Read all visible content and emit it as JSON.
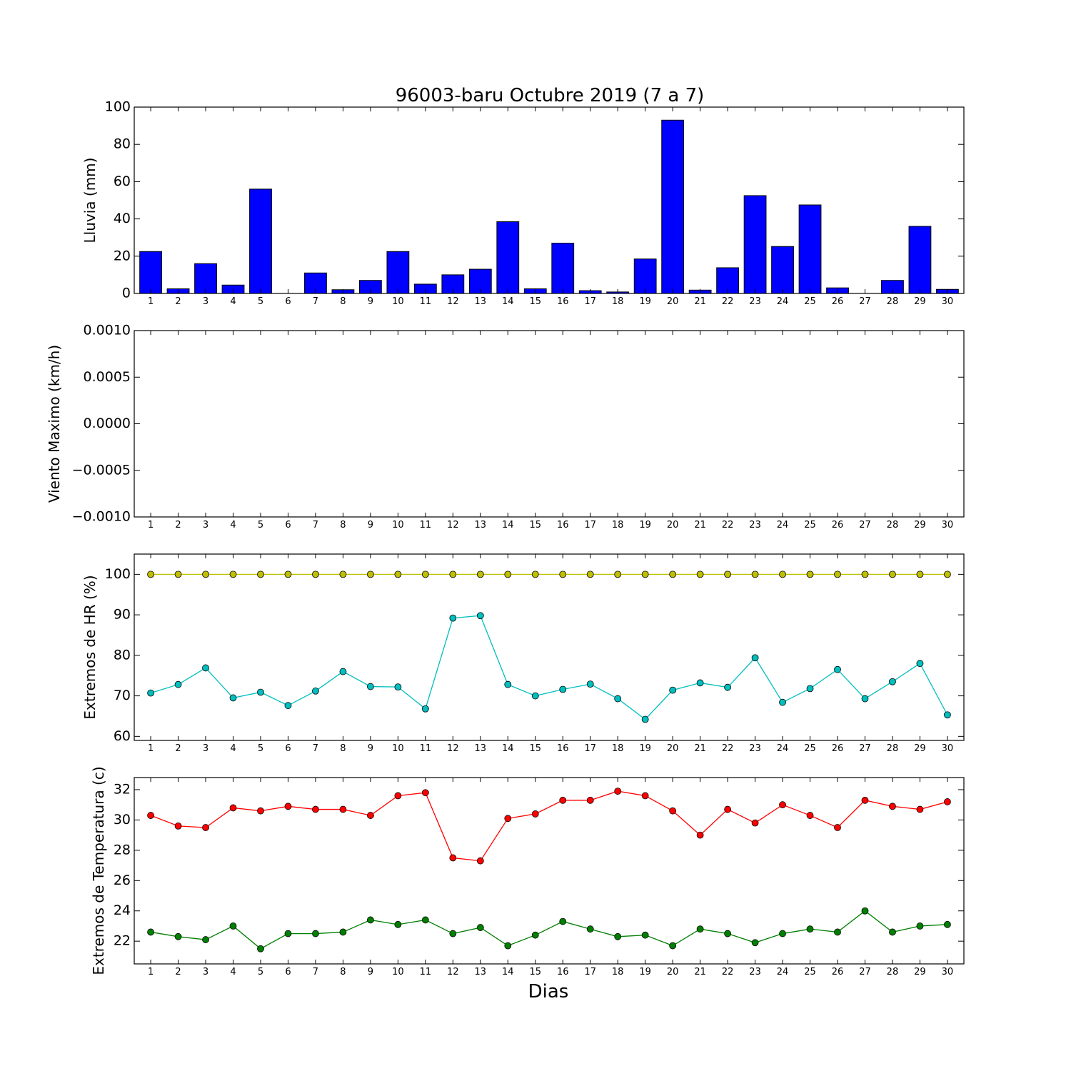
{
  "title": "96003-baru Octubre 2019  (7 a 7)",
  "xlabel": "Dias",
  "chart_data": [
    {
      "type": "bar",
      "ylabel": "Lluvia (mm)",
      "ylim": [
        0,
        100
      ],
      "yticks": [
        "0",
        "20",
        "40",
        "60",
        "80",
        "100"
      ],
      "categories": [
        "1",
        "2",
        "3",
        "4",
        "5",
        "6",
        "7",
        "8",
        "9",
        "10",
        "11",
        "12",
        "13",
        "14",
        "15",
        "16",
        "17",
        "18",
        "19",
        "20",
        "21",
        "22",
        "23",
        "24",
        "25",
        "26",
        "27",
        "28",
        "29",
        "30"
      ],
      "values": [
        22.5,
        2.5,
        16,
        4.5,
        56,
        0,
        11,
        2,
        7,
        22.5,
        5,
        10,
        13,
        38.5,
        2.5,
        27,
        1.5,
        0.8,
        18.5,
        93,
        1.8,
        13.8,
        52.5,
        25.2,
        47.5,
        3,
        0,
        7,
        36,
        2.2
      ],
      "colors": {
        "bar": "#0000ff"
      }
    },
    {
      "type": "line",
      "ylabel": "Viento Maximo (km/h)",
      "ylim": [
        -0.001,
        0.001
      ],
      "yticks": [
        "−0.0010",
        "−0.0005",
        "0.0000",
        "0.0005",
        "0.0010"
      ],
      "categories": [
        "1",
        "2",
        "3",
        "4",
        "5",
        "6",
        "7",
        "8",
        "9",
        "10",
        "11",
        "12",
        "13",
        "14",
        "15",
        "16",
        "17",
        "18",
        "19",
        "20",
        "21",
        "22",
        "23",
        "24",
        "25",
        "26",
        "27",
        "28",
        "29",
        "30"
      ],
      "series": []
    },
    {
      "type": "line",
      "ylabel": "Extremos de HR (%)",
      "ylim": [
        59,
        105
      ],
      "yticks": [
        "60",
        "70",
        "80",
        "90",
        "100"
      ],
      "categories": [
        "1",
        "2",
        "3",
        "4",
        "5",
        "6",
        "7",
        "8",
        "9",
        "10",
        "11",
        "12",
        "13",
        "14",
        "15",
        "16",
        "17",
        "18",
        "19",
        "20",
        "21",
        "22",
        "23",
        "24",
        "25",
        "26",
        "27",
        "28",
        "29",
        "30"
      ],
      "series": [
        {
          "color": "#bfbf00",
          "values": [
            100,
            100,
            100,
            100,
            100,
            100,
            100,
            100,
            100,
            100,
            100,
            100,
            100,
            100,
            100,
            100,
            100,
            100,
            100,
            100,
            100,
            100,
            100,
            100,
            100,
            100,
            100,
            100,
            100,
            100
          ]
        },
        {
          "color": "#00bfbf",
          "values": [
            70.7,
            72.8,
            76.9,
            69.5,
            70.9,
            67.6,
            71.2,
            76,
            72.3,
            72.2,
            66.8,
            89.2,
            89.8,
            72.8,
            70,
            71.6,
            72.9,
            69.3,
            64.2,
            71.4,
            73.2,
            72.1,
            79.4,
            68.4,
            71.8,
            76.5,
            69.3,
            73.5,
            78,
            65.3
          ]
        }
      ]
    },
    {
      "type": "line",
      "ylabel": "Extremos de Temperatura (c)",
      "ylim": [
        20.5,
        32.8
      ],
      "yticks": [
        "22",
        "24",
        "26",
        "28",
        "30",
        "32"
      ],
      "categories": [
        "1",
        "2",
        "3",
        "4",
        "5",
        "6",
        "7",
        "8",
        "9",
        "10",
        "11",
        "12",
        "13",
        "14",
        "15",
        "16",
        "17",
        "18",
        "19",
        "20",
        "21",
        "22",
        "23",
        "24",
        "25",
        "26",
        "27",
        "28",
        "29",
        "30"
      ],
      "series": [
        {
          "color": "#ff0000",
          "values": [
            30.3,
            29.6,
            29.5,
            30.8,
            30.6,
            30.9,
            30.7,
            30.7,
            30.3,
            31.6,
            31.8,
            27.5,
            27.3,
            30.1,
            30.4,
            31.3,
            31.3,
            31.9,
            31.6,
            30.6,
            29,
            30.7,
            29.8,
            31,
            30.3,
            29.5,
            31.3,
            30.9,
            30.7,
            31.2
          ]
        },
        {
          "color": "#008000",
          "values": [
            22.6,
            22.3,
            22.1,
            23,
            21.5,
            22.5,
            22.5,
            22.6,
            23.4,
            23.1,
            23.4,
            22.5,
            22.9,
            21.7,
            22.4,
            23.3,
            22.8,
            22.3,
            22.4,
            21.7,
            22.8,
            22.5,
            21.9,
            22.5,
            22.8,
            22.6,
            24,
            22.6,
            23,
            23.1
          ]
        }
      ]
    }
  ]
}
